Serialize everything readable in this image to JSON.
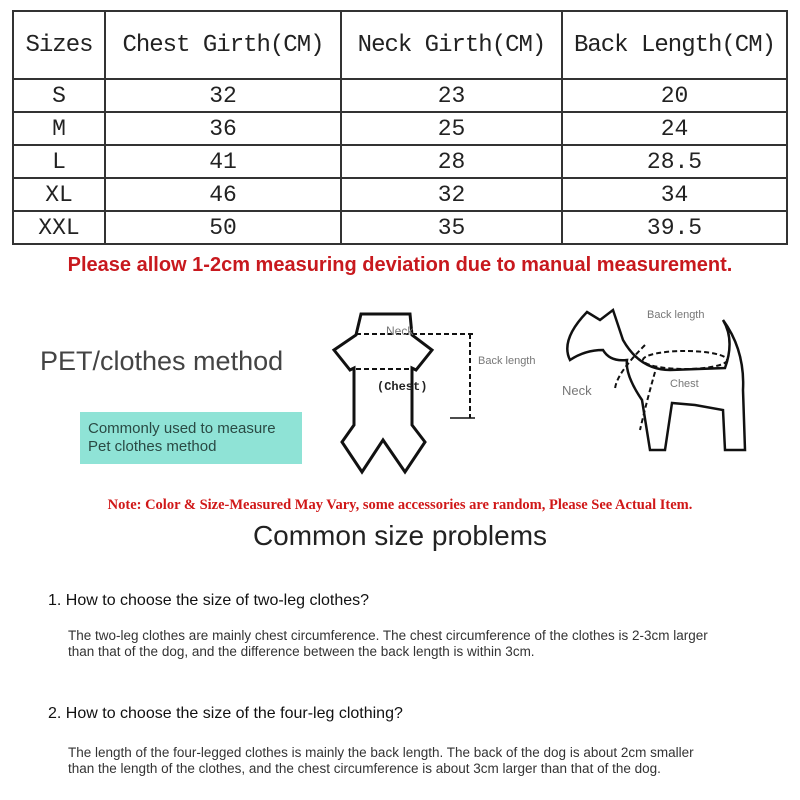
{
  "table": {
    "headers": [
      "Sizes",
      "Chest Girth(CM)",
      "Neck Girth(CM)",
      "Back Length(CM)"
    ],
    "rows": [
      [
        "S",
        "32",
        "23",
        "20"
      ],
      [
        "M",
        "36",
        "25",
        "24"
      ],
      [
        "L",
        "41",
        "28",
        "28.5"
      ],
      [
        "XL",
        "46",
        "32",
        "34"
      ],
      [
        "XXL",
        "50",
        "35",
        "39.5"
      ]
    ]
  },
  "deviation_note": "Please allow 1-2cm measuring deviation due to manual measurement.",
  "method_title": "PET/clothes method",
  "method_box": [
    "Commonly used to measure",
    "Pet clothes method"
  ],
  "clothes_diagram": {
    "neck": "Neck",
    "chest": "(Chest)",
    "back": "Back length"
  },
  "dog_diagram": {
    "back": "Back length",
    "neck": "Neck",
    "chest": "Chest"
  },
  "note": "Note: Color & Size-Measured May Vary, some accessories are random, Please See Actual Item.",
  "faq_title": "Common size problems",
  "faq": [
    {
      "q": "1. How to choose the size of two-leg clothes?",
      "a": "The two-leg clothes are mainly chest circumference. The chest circumference of the clothes is 2-3cm larger than that of the dog, and the difference between the back length is within 3cm."
    },
    {
      "q": "2. How to choose the size of the four-leg clothing?",
      "a": "The length of the four-legged clothes is mainly the back length. The back of the dog is about 2cm smaller than the length of the clothes, and the chest circumference is about 3cm larger than that of the dog."
    }
  ],
  "colors": {
    "red": "#c8191e",
    "teal_box": "#8fe3d6"
  }
}
